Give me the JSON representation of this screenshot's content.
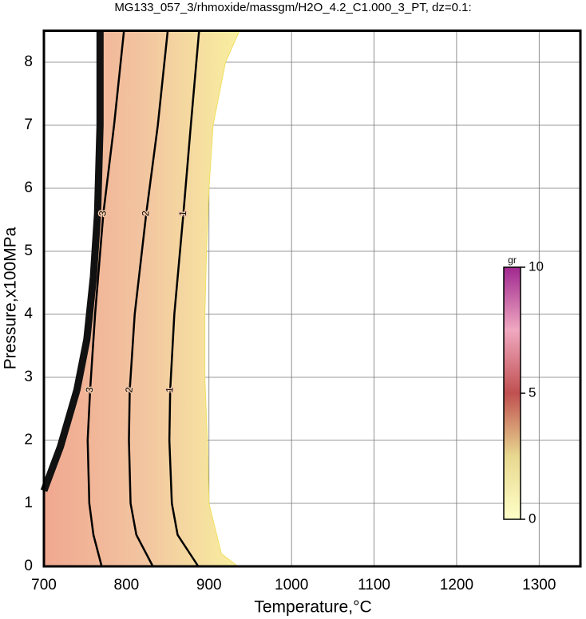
{
  "chart_data": {
    "type": "contour",
    "title": "MG133_057_3/rhmoxide/massgm/H2O_4.2_C1.000_3_PT, dz=0.1:",
    "x_label": "Temperature,°C",
    "y_label": "Pressure,x100MPa",
    "xlim": [
      700,
      1350
    ],
    "xticks": [
      700,
      800,
      900,
      1000,
      1100,
      1200,
      1300
    ],
    "ylim": [
      0,
      8.5
    ],
    "yticks": [
      0,
      1,
      2,
      3,
      4,
      5,
      6,
      7,
      8
    ],
    "grid": true,
    "region": {
      "T": [
        700,
        720,
        740,
        752,
        760,
        765,
        768,
        768,
        937,
        920,
        905,
        900,
        897,
        895,
        895,
        898,
        900,
        915,
        935,
        710,
        700
      ],
      "P": [
        1.2,
        1.9,
        2.8,
        3.6,
        4.6,
        5.6,
        7,
        8.5,
        8.5,
        8,
        7,
        6,
        5,
        4,
        3,
        2,
        1,
        0.2,
        0,
        0,
        0
      ]
    },
    "boundary": {
      "T": [
        700,
        720,
        740,
        752,
        760,
        765,
        768,
        768
      ],
      "P": [
        1.2,
        1.9,
        2.8,
        3.6,
        4.6,
        5.6,
        7,
        8.5
      ]
    },
    "contours": [
      {
        "level": 3,
        "T": [
          770,
          760,
          755,
          753,
          756,
          762,
          772,
          785,
          797
        ],
        "P": [
          0,
          0.5,
          1,
          2,
          2.8,
          4,
          5.6,
          7,
          8.5
        ]
      },
      {
        "level": 2,
        "T": [
          832,
          812,
          805,
          803,
          804,
          810,
          824,
          838,
          850
        ],
        "P": [
          0,
          0.5,
          1,
          2,
          2.8,
          4,
          5.6,
          7,
          8.5
        ]
      },
      {
        "level": 1,
        "T": [
          887,
          862,
          855,
          852,
          853,
          858,
          869,
          878,
          888
        ],
        "P": [
          0,
          0.5,
          1,
          2,
          2.8,
          4,
          5.6,
          7,
          8.5
        ]
      }
    ],
    "colorbar": {
      "label": "gr",
      "lim": [
        0,
        10
      ],
      "ticks": [
        0,
        5,
        10
      ]
    }
  }
}
